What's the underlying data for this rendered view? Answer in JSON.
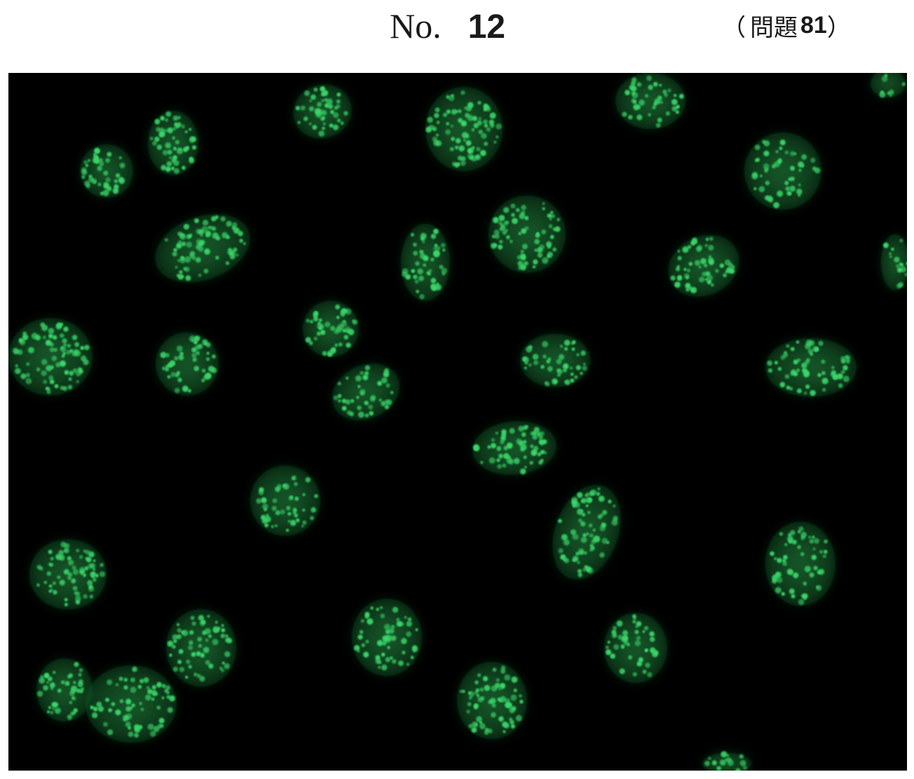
{
  "header": {
    "figure_prefix": "No.",
    "figure_number": "12",
    "question_open": "（",
    "question_label": "問題",
    "question_number": "81",
    "question_close": "）"
  },
  "micrograph": {
    "background_color": "#000000",
    "stain_color": "#3bd66a",
    "glow_color": "#1f7a3a"
  }
}
